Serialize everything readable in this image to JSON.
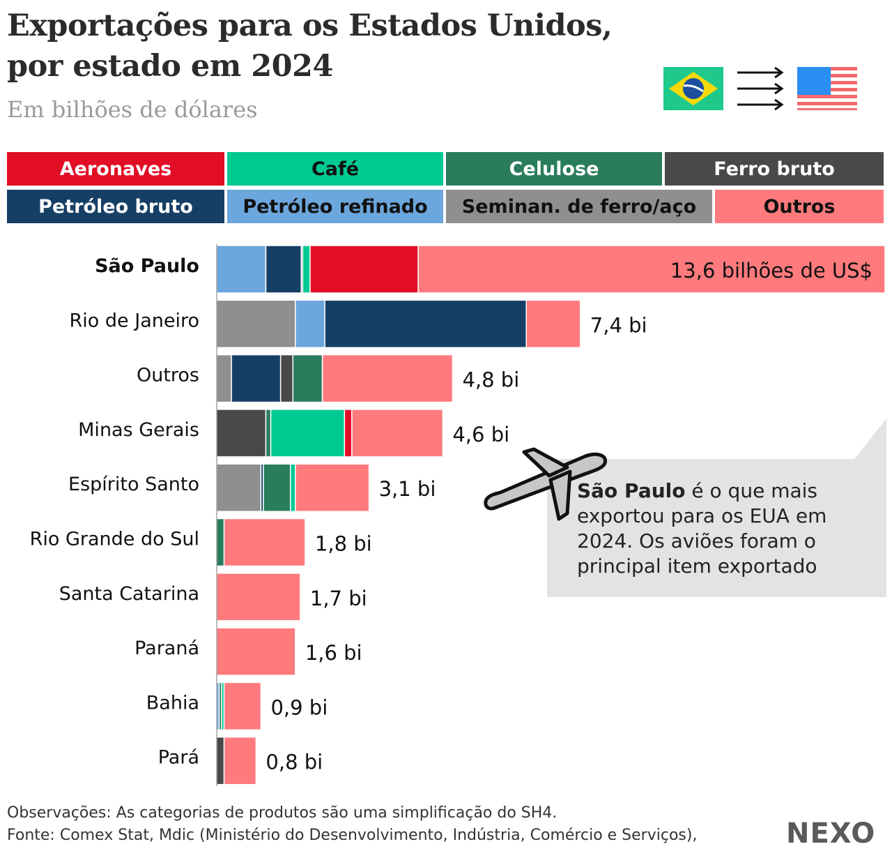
{
  "title_line1": "Exportações para os Estados Unidos,",
  "title_line2": "por estado em 2024",
  "subtitle": "Em bilhões de dólares",
  "legend": [
    {
      "label": "Aeronaves",
      "color": "#e10e26",
      "text": "#ffffff"
    },
    {
      "label": "Café",
      "color": "#00c991",
      "text": "#111111"
    },
    {
      "label": "Celulose",
      "color": "#2a7d5c",
      "text": "#ffffff"
    },
    {
      "label": "Ferro bruto",
      "color": "#494949",
      "text": "#ffffff"
    },
    {
      "label": "Petróleo bruto",
      "color": "#163f66",
      "text": "#ffffff"
    },
    {
      "label": "Petróleo refinado",
      "color": "#6ba6dc",
      "text": "#111111"
    },
    {
      "label": "Seminan. de ferro/aço",
      "color": "#8f8f8f",
      "text": "#111111"
    },
    {
      "label": "Outros",
      "color": "#ff7a7d",
      "text": "#111111"
    }
  ],
  "chart_data": {
    "type": "bar",
    "orientation": "horizontal",
    "stacked": true,
    "unit": "bilhões de US$",
    "categories": [
      "São Paulo",
      "Rio de Janeiro",
      "Outros",
      "Minas Gerais",
      "Espírito Santo",
      "Rio Grande do Sul",
      "Santa Catarina",
      "Paraná",
      "Bahia",
      "Pará"
    ],
    "totals": [
      13.6,
      7.4,
      4.8,
      4.6,
      3.1,
      1.8,
      1.7,
      1.6,
      0.9,
      0.8
    ],
    "value_labels": [
      "13,6 bilhões de US$",
      "7,4 bi",
      "4,8 bi",
      "4,6 bi",
      "3,1 bi",
      "1,8 bi",
      "1,7 bi",
      "1,6 bi",
      "0,9 bi",
      "0,8 bi"
    ],
    "segments": [
      [
        [
          "Petróleo refinado",
          1.0
        ],
        [
          "Petróleo bruto",
          0.72
        ],
        [
          "Seminan. de ferro/aço",
          0.03
        ],
        [
          "Café",
          0.15
        ],
        [
          "Aeronaves",
          2.2
        ],
        [
          "Outros",
          9.5
        ]
      ],
      [
        [
          "Seminan. de ferro/aço",
          1.6
        ],
        [
          "Petróleo refinado",
          0.6
        ],
        [
          "Petróleo bruto",
          4.1
        ],
        [
          "Outros",
          1.1
        ]
      ],
      [
        [
          "Seminan. de ferro/aço",
          0.3
        ],
        [
          "Petróleo bruto",
          1.0
        ],
        [
          "Ferro bruto",
          0.25
        ],
        [
          "Celulose",
          0.6
        ],
        [
          "Outros",
          2.65
        ]
      ],
      [
        [
          "Ferro bruto",
          1.0
        ],
        [
          "Celulose",
          0.1
        ],
        [
          "Café",
          1.5
        ],
        [
          "Aeronaves",
          0.15
        ],
        [
          "Outros",
          1.85
        ]
      ],
      [
        [
          "Seminan. de ferro/aço",
          0.9
        ],
        [
          "Petróleo bruto",
          0.05
        ],
        [
          "Celulose",
          0.55
        ],
        [
          "Café",
          0.1
        ],
        [
          "Outros",
          1.5
        ]
      ],
      [
        [
          "Celulose",
          0.15
        ],
        [
          "Outros",
          1.65
        ]
      ],
      [
        [
          "Outros",
          1.7
        ]
      ],
      [
        [
          "Outros",
          1.6
        ]
      ],
      [
        [
          "Petróleo refinado",
          0.05
        ],
        [
          "Celulose",
          0.05
        ],
        [
          "Café",
          0.05
        ],
        [
          "Outros",
          0.75
        ]
      ],
      [
        [
          "Ferro bruto",
          0.15
        ],
        [
          "Outros",
          0.65
        ]
      ]
    ],
    "xlim": [
      0,
      13.6
    ]
  },
  "callout": {
    "bold": "São Paulo",
    "text": " é o que mais exportou para os EUA em 2024. Os aviões foram o principal item exportado"
  },
  "icons": [
    "brazil-flag-icon",
    "arrows-icon",
    "usa-flag-icon",
    "airplane-icon"
  ],
  "footer": {
    "note": "Observações: As categorias de produtos são uma simplificação do SH4.",
    "source": "Fonte: Comex Stat, Mdic (Ministério do Desenvolvimento, Indústria, Comércio e Serviços),"
  },
  "brand": "NEXO"
}
